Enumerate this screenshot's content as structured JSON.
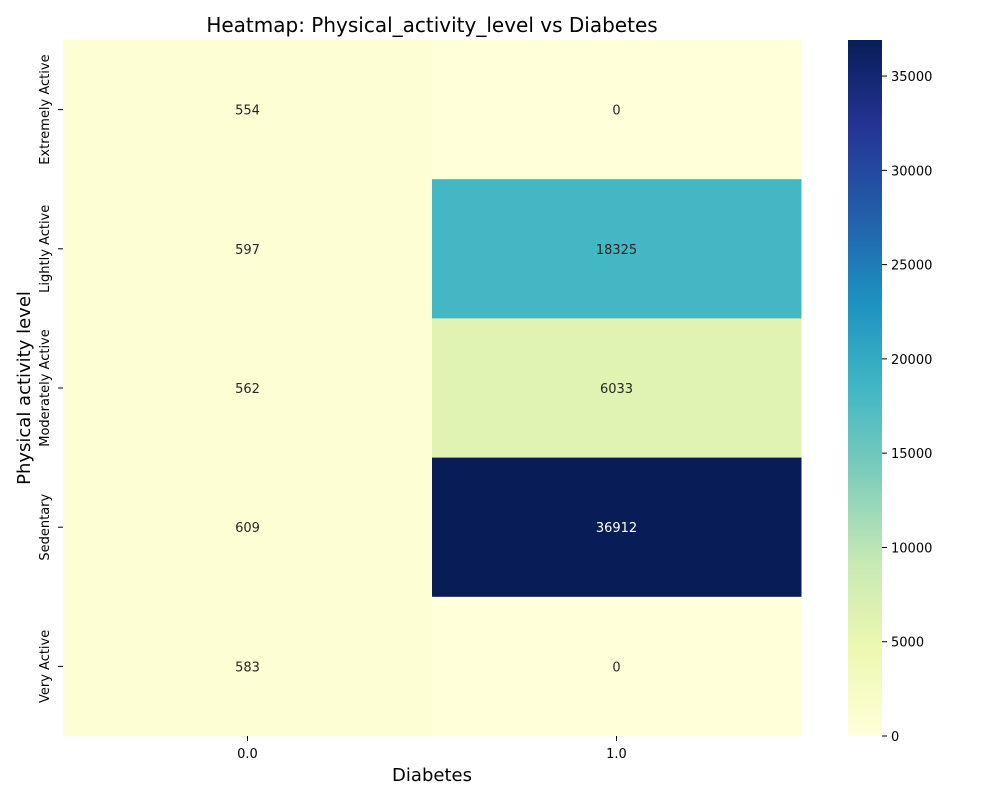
{
  "chart_data": {
    "type": "heatmap",
    "title": "Heatmap: Physical_activity_level vs Diabetes",
    "xlabel": "Diabetes",
    "ylabel": "Physical activity level",
    "x_categories": [
      "0.0",
      "1.0"
    ],
    "y_categories": [
      "Extremely Active",
      "Lightly Active",
      "Moderately Active",
      "Sedentary",
      "Very Active"
    ],
    "values": [
      [
        554,
        0
      ],
      [
        597,
        18325
      ],
      [
        562,
        6033
      ],
      [
        609,
        36912
      ],
      [
        583,
        0
      ]
    ],
    "colormap": "YlGnBu",
    "color_range": [
      0,
      36912
    ],
    "colorbar_ticks": [
      "0",
      "5000",
      "10000",
      "15000",
      "20000",
      "25000",
      "30000",
      "35000"
    ]
  }
}
